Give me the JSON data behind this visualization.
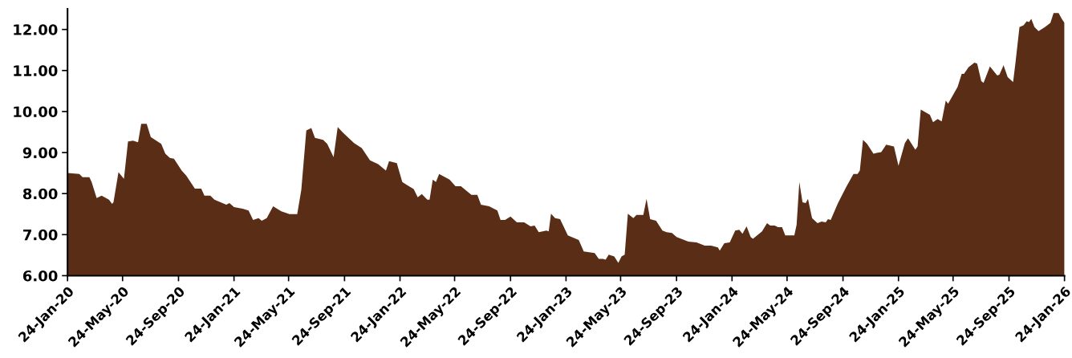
{
  "chart_data": {
    "type": "area",
    "color": "#5a2d17",
    "grid": false,
    "legend": false,
    "x": [
      "2020-01-24",
      "2020-02-19",
      "2020-02-26",
      "2020-03-12",
      "2020-03-17",
      "2020-03-28",
      "2020-04-08",
      "2020-04-24",
      "2020-05-01",
      "2020-05-04",
      "2020-05-15",
      "2020-05-27",
      "2020-06-05",
      "2020-06-16",
      "2020-06-27",
      "2020-07-04",
      "2020-07-16",
      "2020-07-25",
      "2020-08-17",
      "2020-08-26",
      "2020-09-05",
      "2020-09-14",
      "2020-10-01",
      "2020-10-11",
      "2020-10-30",
      "2020-11-13",
      "2020-11-20",
      "2020-12-03",
      "2020-12-12",
      "2021-01-07",
      "2021-01-14",
      "2021-01-24",
      "2021-02-12",
      "2021-02-25",
      "2021-03-07",
      "2021-03-19",
      "2021-03-26",
      "2021-04-06",
      "2021-04-20",
      "2021-05-08",
      "2021-05-26",
      "2021-06-12",
      "2021-06-21",
      "2021-07-02",
      "2021-07-13",
      "2021-07-21",
      "2021-08-08",
      "2021-08-17",
      "2021-08-31",
      "2021-09-09",
      "2021-09-21",
      "2021-10-15",
      "2021-11-01",
      "2021-11-19",
      "2021-12-07",
      "2021-12-24",
      "2021-12-31",
      "2022-01-17",
      "2022-01-29",
      "2022-02-23",
      "2022-03-04",
      "2022-03-13",
      "2022-03-25",
      "2022-03-30",
      "2022-04-06",
      "2022-04-13",
      "2022-04-20",
      "2022-05-13",
      "2022-05-26",
      "2022-06-07",
      "2022-06-30",
      "2022-07-13",
      "2022-07-21",
      "2022-08-08",
      "2022-08-26",
      "2022-09-02",
      "2022-09-12",
      "2022-09-24",
      "2022-10-08",
      "2022-10-24",
      "2022-11-07",
      "2022-11-16",
      "2022-11-25",
      "2022-12-12",
      "2022-12-17",
      "2022-12-22",
      "2022-12-31",
      "2023-01-11",
      "2023-01-28",
      "2023-02-21",
      "2023-03-04",
      "2023-03-28",
      "2023-04-06",
      "2023-04-15",
      "2023-04-21",
      "2023-04-28",
      "2023-05-10",
      "2023-05-19",
      "2023-05-26",
      "2023-06-02",
      "2023-06-09",
      "2023-06-21",
      "2023-06-28",
      "2023-07-13",
      "2023-07-20",
      "2023-07-28",
      "2023-08-10",
      "2023-08-24",
      "2023-09-02",
      "2023-09-14",
      "2023-09-24",
      "2023-10-20",
      "2023-11-07",
      "2023-11-25",
      "2023-12-09",
      "2023-12-24",
      "2023-12-28",
      "2024-01-07",
      "2024-01-19",
      "2024-01-31",
      "2024-02-09",
      "2024-02-16",
      "2024-02-25",
      "2024-03-05",
      "2024-03-10",
      "2024-03-30",
      "2024-04-10",
      "2024-04-17",
      "2024-04-27",
      "2024-05-04",
      "2024-05-13",
      "2024-05-20",
      "2024-06-09",
      "2024-06-14",
      "2024-06-20",
      "2024-06-27",
      "2024-07-04",
      "2024-07-09",
      "2024-07-18",
      "2024-07-30",
      "2024-08-08",
      "2024-08-17",
      "2024-08-22",
      "2024-08-28",
      "2024-09-13",
      "2024-10-01",
      "2024-10-17",
      "2024-10-26",
      "2024-10-31",
      "2024-11-07",
      "2024-11-16",
      "2024-11-30",
      "2024-12-07",
      "2024-12-17",
      "2024-12-28",
      "2025-01-14",
      "2025-01-24",
      "2025-02-07",
      "2025-02-14",
      "2025-03-02",
      "2025-03-07",
      "2025-03-14",
      "2025-04-03",
      "2025-04-10",
      "2025-04-20",
      "2025-04-29",
      "2025-05-08",
      "2025-05-13",
      "2025-06-03",
      "2025-06-12",
      "2025-06-17",
      "2025-06-27",
      "2025-07-10",
      "2025-07-16",
      "2025-07-25",
      "2025-07-30",
      "2025-08-13",
      "2025-08-29",
      "2025-09-03",
      "2025-09-12",
      "2025-09-21",
      "2025-10-03",
      "2025-10-08",
      "2025-10-17",
      "2025-10-26",
      "2025-11-02",
      "2025-11-07",
      "2025-11-12",
      "2025-11-19",
      "2025-11-28",
      "2025-12-12",
      "2025-12-24",
      "2025-12-31",
      "2026-01-11",
      "2026-01-18",
      "2026-01-24"
    ],
    "values": [
      8.5,
      8.48,
      8.4,
      8.4,
      8.28,
      7.89,
      7.95,
      7.85,
      7.75,
      7.79,
      8.52,
      8.36,
      9.27,
      9.29,
      9.25,
      9.7,
      9.7,
      9.38,
      9.21,
      8.97,
      8.87,
      8.85,
      8.56,
      8.44,
      8.12,
      8.12,
      7.95,
      7.95,
      7.85,
      7.73,
      7.77,
      7.67,
      7.63,
      7.59,
      7.36,
      7.4,
      7.34,
      7.4,
      7.69,
      7.57,
      7.5,
      7.5,
      8.09,
      9.54,
      9.6,
      9.36,
      9.31,
      9.21,
      8.89,
      9.62,
      9.48,
      9.23,
      9.11,
      8.81,
      8.72,
      8.56,
      8.79,
      8.74,
      8.28,
      8.11,
      7.91,
      7.99,
      7.85,
      7.85,
      8.34,
      8.28,
      8.48,
      8.34,
      8.18,
      8.18,
      7.97,
      7.97,
      7.73,
      7.69,
      7.59,
      7.36,
      7.36,
      7.44,
      7.3,
      7.3,
      7.2,
      7.22,
      7.06,
      7.1,
      7.08,
      7.51,
      7.4,
      7.38,
      6.98,
      6.87,
      6.59,
      6.55,
      6.41,
      6.41,
      6.39,
      6.51,
      6.47,
      6.31,
      6.47,
      6.51,
      7.51,
      7.4,
      7.48,
      7.48,
      7.87,
      7.38,
      7.34,
      7.1,
      7.06,
      7.04,
      6.94,
      6.83,
      6.81,
      6.73,
      6.73,
      6.69,
      6.61,
      6.79,
      6.81,
      7.1,
      7.12,
      7.02,
      7.2,
      6.94,
      6.9,
      7.08,
      7.28,
      7.22,
      7.22,
      7.18,
      7.18,
      6.98,
      6.98,
      7.24,
      8.28,
      7.79,
      7.77,
      7.87,
      7.4,
      7.28,
      7.32,
      7.3,
      7.38,
      7.36,
      7.77,
      8.16,
      8.48,
      8.48,
      8.56,
      9.31,
      9.21,
      8.97,
      8.99,
      9.01,
      9.19,
      9.15,
      8.68,
      9.23,
      9.35,
      9.07,
      9.15,
      10.05,
      9.92,
      9.74,
      9.82,
      9.76,
      10.27,
      10.19,
      10.6,
      10.92,
      10.92,
      11.08,
      11.19,
      11.17,
      10.74,
      10.7,
      11.1,
      10.88,
      10.9,
      11.13,
      10.84,
      10.72,
      11.17,
      12.06,
      12.1,
      12.2,
      12.18,
      12.26,
      12.06,
      11.96,
      12.06,
      12.16,
      12.4,
      12.4,
      12.26,
      12.16
    ],
    "xlim": [
      "2020-01-24",
      "2026-01-24"
    ],
    "xticks": [
      {
        "value": "2020-01-24",
        "label": "24-Jan-20"
      },
      {
        "value": "2020-05-24",
        "label": "24-May-20"
      },
      {
        "value": "2020-09-24",
        "label": "24-Sep-20"
      },
      {
        "value": "2021-01-24",
        "label": "24-Jan-21"
      },
      {
        "value": "2021-05-24",
        "label": "24-May-21"
      },
      {
        "value": "2021-09-24",
        "label": "24-Sep-21"
      },
      {
        "value": "2022-01-24",
        "label": "24-Jan-22"
      },
      {
        "value": "2022-05-24",
        "label": "24-May-22"
      },
      {
        "value": "2022-09-24",
        "label": "24-Sep-22"
      },
      {
        "value": "2023-01-24",
        "label": "24-Jan-23"
      },
      {
        "value": "2023-05-24",
        "label": "24-May-23"
      },
      {
        "value": "2023-09-24",
        "label": "24-Sep-23"
      },
      {
        "value": "2024-01-24",
        "label": "24-Jan-24"
      },
      {
        "value": "2024-05-24",
        "label": "24-May-24"
      },
      {
        "value": "2024-09-24",
        "label": "24-Sep-24"
      },
      {
        "value": "2025-01-24",
        "label": "24-Jan-25"
      },
      {
        "value": "2025-05-24",
        "label": "24-May-25"
      },
      {
        "value": "2025-09-24",
        "label": "24-Sep-25"
      },
      {
        "value": "2026-01-24",
        "label": "24-Jan-26"
      }
    ],
    "ylim": [
      6,
      12.5
    ],
    "yticks": [
      {
        "value": 6,
        "label": "6.00"
      },
      {
        "value": 7,
        "label": "7.00"
      },
      {
        "value": 8,
        "label": "8.00"
      },
      {
        "value": 9,
        "label": "9.00"
      },
      {
        "value": 10,
        "label": "10.00"
      },
      {
        "value": 11,
        "label": "11.00"
      },
      {
        "value": 12,
        "label": "12.00"
      }
    ]
  }
}
